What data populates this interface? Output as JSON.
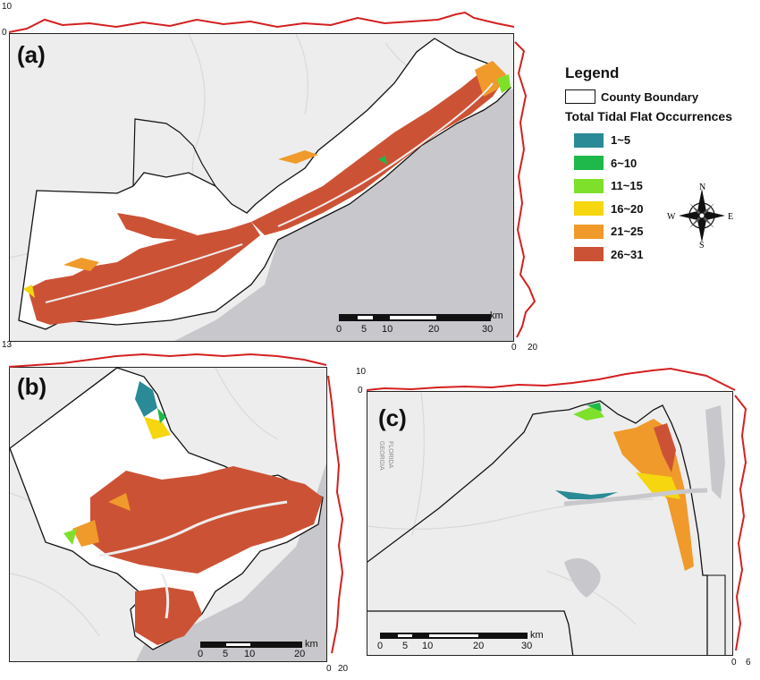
{
  "legend": {
    "title": "Legend",
    "county_boundary_label": "County Boundary",
    "subtitle": "Total Tidal Flat Occurrences",
    "classes": [
      {
        "label": "1~5",
        "color": "#2a8a96"
      },
      {
        "label": "6~10",
        "color": "#1fb84a"
      },
      {
        "label": "11~15",
        "color": "#7ee02a"
      },
      {
        "label": "16~20",
        "color": "#f5d60f"
      },
      {
        "label": "21~25",
        "color": "#ef9a2a"
      },
      {
        "label": "26~31",
        "color": "#cc5236"
      }
    ]
  },
  "compass": {
    "n": "N",
    "s": "S",
    "e": "E",
    "w": "W"
  },
  "panels": {
    "a": {
      "letter": "(a)",
      "top_profile_ticks": [
        "10",
        "0"
      ],
      "side_profile_ticks": [
        "0",
        "20"
      ],
      "corner_tick": "13",
      "scale": {
        "unit": "km",
        "ticks": [
          "0",
          "5",
          "10",
          "20",
          "30"
        ]
      }
    },
    "b": {
      "letter": "(b)",
      "side_profile_ticks": [
        "0",
        "20"
      ],
      "scale": {
        "unit": "km",
        "ticks": [
          "0",
          "5",
          "10",
          "20"
        ]
      }
    },
    "c": {
      "letter": "(c)",
      "top_profile_ticks": [
        "10",
        "0"
      ],
      "side_profile_ticks": [
        "0",
        "6"
      ],
      "state_labels": [
        "GEORGIA",
        "FLORIDA"
      ],
      "scale": {
        "unit": "km",
        "ticks": [
          "0",
          "5",
          "10",
          "20",
          "30"
        ]
      }
    }
  },
  "colors": {
    "profile": "#d42020",
    "water": "#c8c8cc",
    "land": "#ededed",
    "county_fill": "#ffffff",
    "boundary": "#111111"
  }
}
